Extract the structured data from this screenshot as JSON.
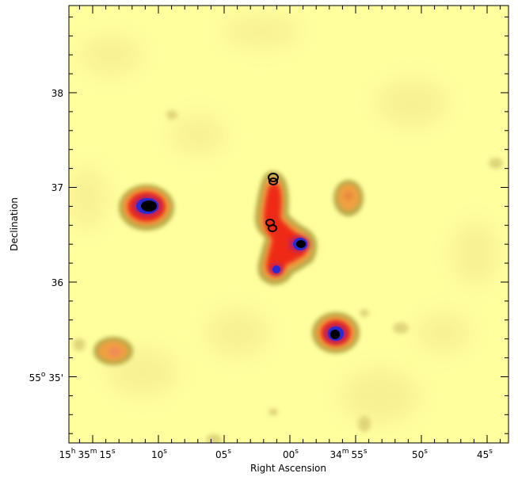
{
  "image": {
    "kind": "radio-continuum intensity map with source-position markers",
    "colors": {
      "background": "#ffff9e",
      "faint": "#f2e58c",
      "olive": "#b7aa4a",
      "orange": "#f0a040",
      "red": "#ee2a16",
      "magenta": "#b0206a",
      "blue": "#2a2ad0",
      "core": "#000000"
    }
  },
  "axes": {
    "x_title": "Right Ascension",
    "y_title": "Declination",
    "x_ticks": [
      {
        "main": "15",
        "unit1": "h",
        "mid": "35",
        "unit2": "m",
        "val": "15",
        "unit3": "s"
      },
      {
        "main": "10",
        "unit1": "s"
      },
      {
        "main": "05",
        "unit1": "s"
      },
      {
        "main": "00",
        "unit1": "s"
      },
      {
        "main": "34",
        "unit1": "m",
        "mid": "55",
        "unit2": "s"
      },
      {
        "main": "50",
        "unit1": "s"
      },
      {
        "main": "45",
        "unit1": "s"
      }
    ],
    "y_ticks": [
      {
        "text": "38"
      },
      {
        "text": "37"
      },
      {
        "text": "36"
      },
      {
        "main": "55",
        "unit1": "o",
        "mid": "35'",
        "unit2": ""
      }
    ]
  },
  "markers": {
    "shape": "circle",
    "color": "#000000",
    "count": 4
  }
}
